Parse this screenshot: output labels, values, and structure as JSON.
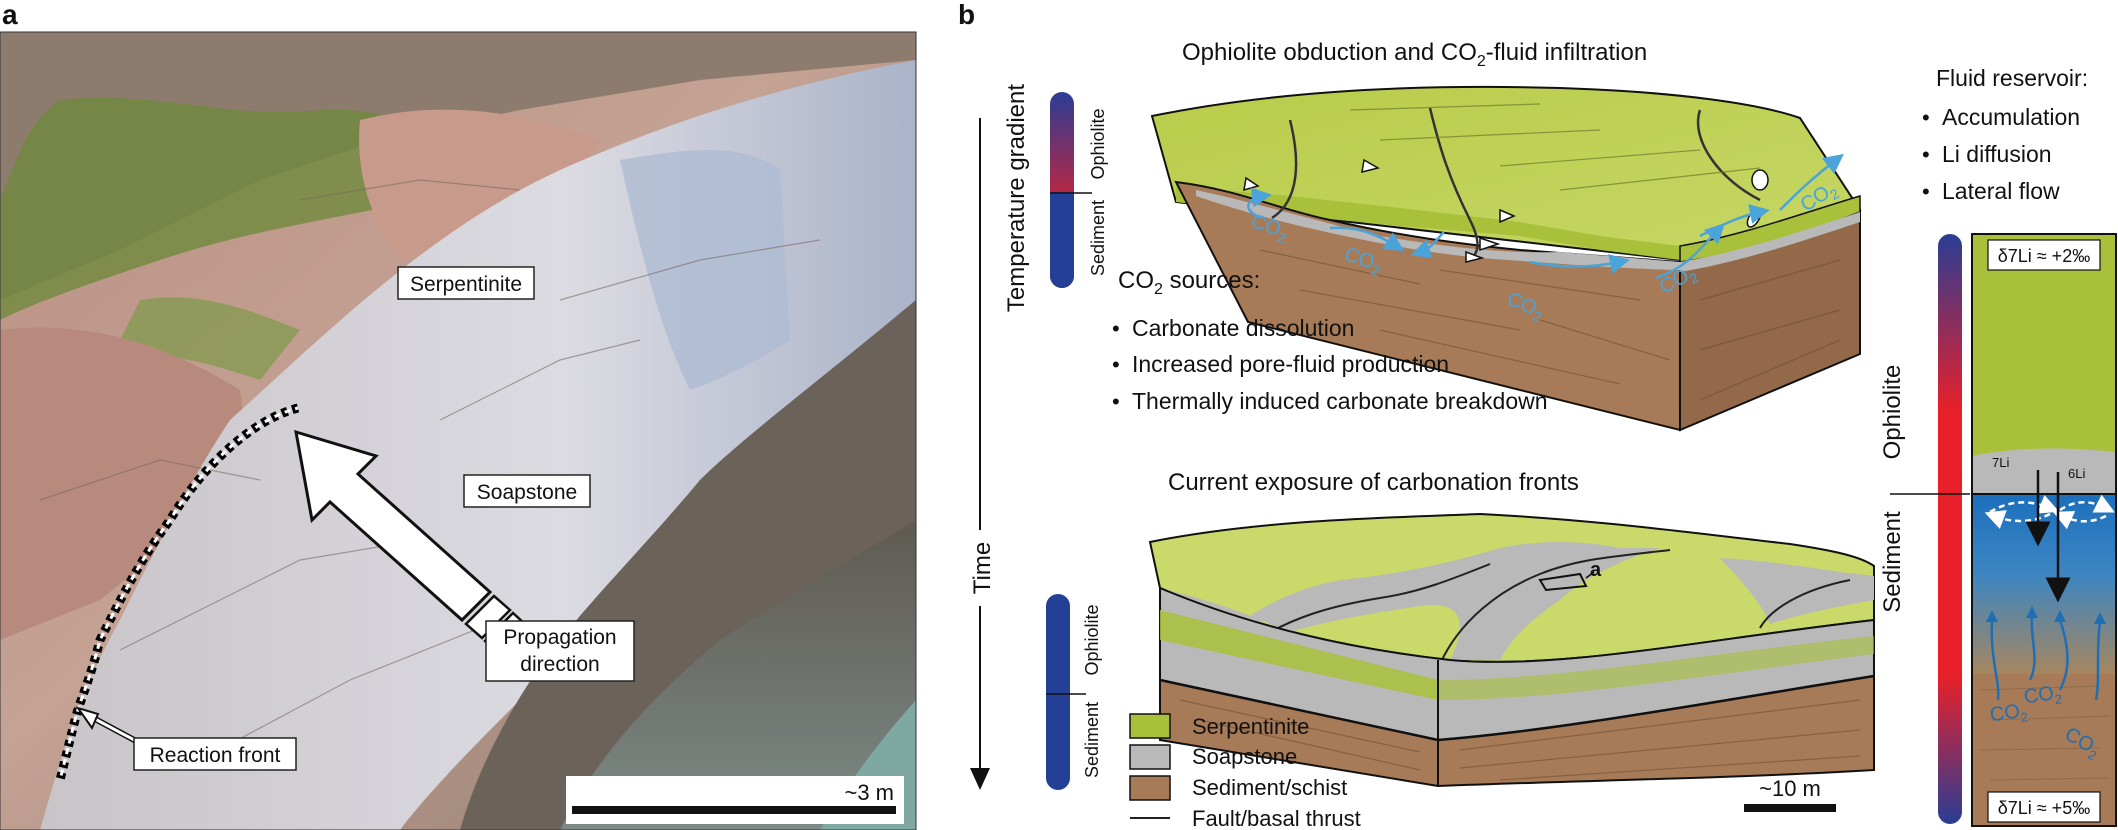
{
  "panel_a": {
    "letter": "a",
    "labels": {
      "serpentinite": "Serpentinite",
      "soapstone": "Soapstone",
      "propagation_line1": "Propagation",
      "propagation_line2": "direction",
      "reaction_front": "Reaction front"
    },
    "scale_bar": "~3 m"
  },
  "panel_b": {
    "letter": "b",
    "time_axis": {
      "label": "Time"
    },
    "top": {
      "title_pre": "Ophiolite obduction and CO",
      "title_sub": "2",
      "title_post": "-fluid infiltration",
      "gradient_label": "Temperature gradient",
      "bar_top_label": "Ophiolite",
      "bar_bottom_label": "Sediment",
      "co2_label_main": "CO",
      "co2_label_sub": "2",
      "sources_title_pre": "CO",
      "sources_title_sub": "2",
      "sources_title_post": " sources:",
      "sources": [
        "Carbonate dissolution",
        "Increased pore-fluid production",
        "Thermally induced carbonate breakdown"
      ]
    },
    "bottom": {
      "title": "Current exposure of carbonation fronts",
      "bar_top_label": "Ophiolite",
      "bar_bottom_label": "Sediment",
      "marker": "a",
      "scale_bar": "~10 m",
      "legend": [
        {
          "label": "Serpentinite",
          "color": "#a9c13a"
        },
        {
          "label": "Soapstone",
          "color": "#b9b9b9"
        },
        {
          "label": "Sediment/schist",
          "color": "#a77b58"
        },
        {
          "label": "Fault/basal thrust",
          "color": "#222222"
        }
      ]
    },
    "reservoir": {
      "title": "Fluid reservoir:",
      "items": [
        "Accumulation",
        "Li diffusion",
        "Lateral flow"
      ],
      "bar_top_label": "Ophiolite",
      "bar_bottom_label": "Sediment",
      "top_value": "δ7Li ≈ +2‰",
      "bottom_value": "δ7Li ≈ +5‰",
      "li7": "7Li",
      "li6": "6Li"
    }
  },
  "colors": {
    "serpentinite": "#a9c13a",
    "serpentinite_light": "#c9d96a",
    "soapstone": "#b9b9b9",
    "sediment": "#a77b58",
    "fluid_blue": "#1f6fb5",
    "co2_arrow": "#4aa3d9",
    "hot": "#e8202a",
    "cold": "#243f96"
  }
}
